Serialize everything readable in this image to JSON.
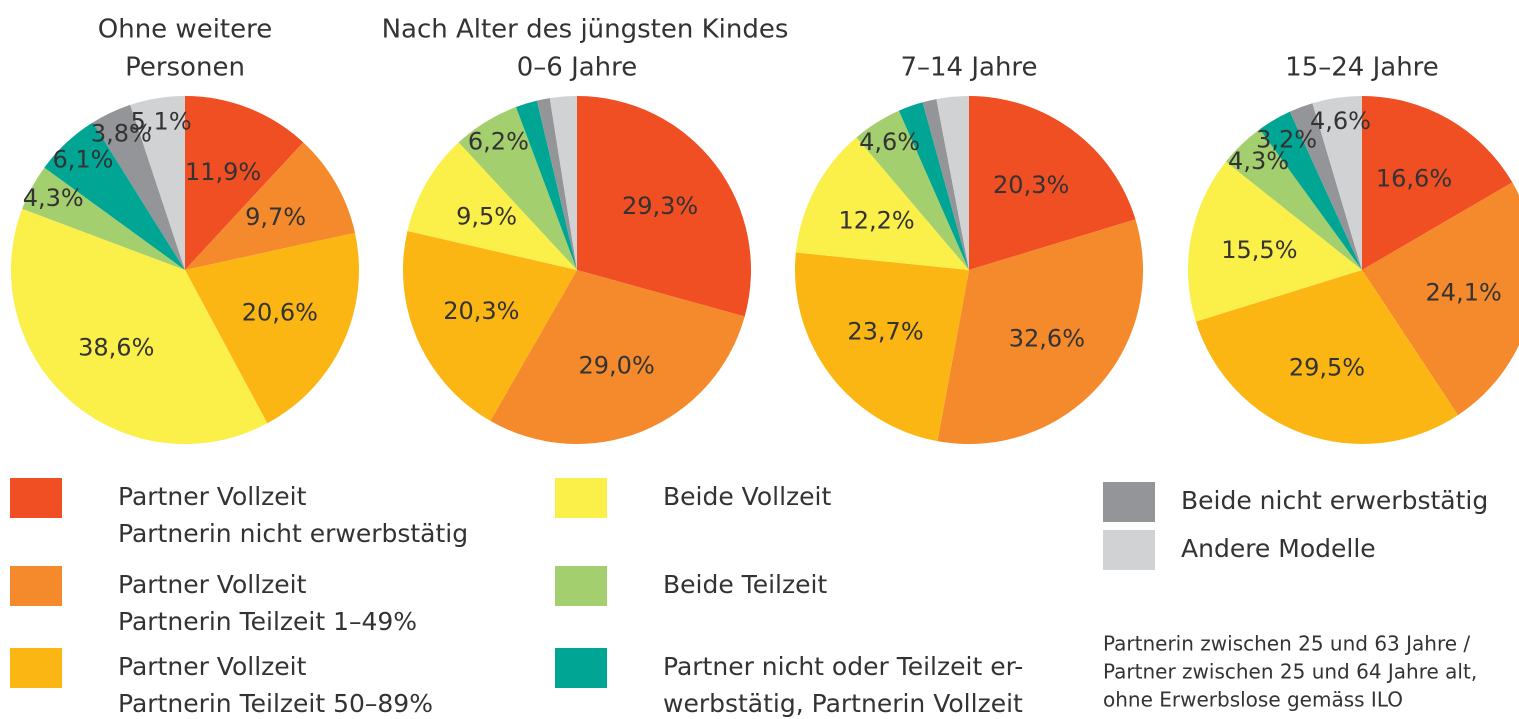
{
  "group_title": "Nach Alter des jüngsten Kindes",
  "legend": [
    {
      "name": [
        "Partner Vollzeit",
        "Partnerin nicht erwerbstätig"
      ],
      "color": "#f04e23"
    },
    {
      "name": [
        "Partner Vollzeit",
        "Partnerin Teilzeit 1–49%"
      ],
      "color": "#f58a2c"
    },
    {
      "name": [
        "Partner Vollzeit",
        "Partnerin Teilzeit 50–89%"
      ],
      "color": "#fbb614"
    },
    {
      "name": [
        "Beide Vollzeit"
      ],
      "color": "#fbef4a"
    },
    {
      "name": [
        "Beide Teilzeit"
      ],
      "color": "#a4cf6e"
    },
    {
      "name": [
        "Partner nicht oder Teilzeit er-",
        "werbstätig, Partnerin Vollzeit"
      ],
      "color": "#00a594"
    },
    {
      "name": [
        "Beide nicht erwerbstätig"
      ],
      "color": "#939598"
    },
    {
      "name": [
        "Andere Modelle"
      ],
      "color": "#d1d2d4"
    }
  ],
  "note": [
    "Partnerin zwischen 25 und 63 Jahre /",
    "Partner zwischen 25 und 64 Jahre alt,",
    "ohne Erwerbslose gemäss ILO"
  ],
  "chart_data": [
    {
      "type": "pie",
      "title": [
        "Ohne weitere",
        "Personen"
      ],
      "values": [
        11.9,
        9.7,
        20.6,
        38.6,
        4.3,
        6.1,
        3.8,
        5.1
      ],
      "value_labels": [
        "11,9%",
        "9,7%",
        "20,6%",
        "38,6%",
        "4,3%",
        "6,1%",
        "3,8%",
        "5,1%"
      ]
    },
    {
      "type": "pie",
      "title": [
        "0–6 Jahre"
      ],
      "values": [
        29.3,
        29.0,
        20.3,
        9.5,
        6.2,
        2.0,
        1.2,
        2.5
      ],
      "value_labels": [
        "29,3%",
        "29,0%",
        "20,3%",
        "9,5%",
        "6,2%",
        null,
        null,
        null
      ]
    },
    {
      "type": "pie",
      "title": [
        "7–14 Jahre"
      ],
      "values": [
        20.3,
        32.6,
        23.7,
        12.2,
        4.6,
        2.3,
        1.3,
        3.0
      ],
      "value_labels": [
        "20,3%",
        "32,6%",
        "23,7%",
        "12,2%",
        "4,6%",
        null,
        null,
        null
      ]
    },
    {
      "type": "pie",
      "title": [
        "15–24 Jahre"
      ],
      "values": [
        16.6,
        24.1,
        29.5,
        15.5,
        4.3,
        3.2,
        2.2,
        4.6
      ],
      "value_labels": [
        "16,6%",
        "24,1%",
        "29,5%",
        "15,5%",
        "4,3%",
        "3,2%",
        null,
        "4,6%"
      ]
    }
  ]
}
